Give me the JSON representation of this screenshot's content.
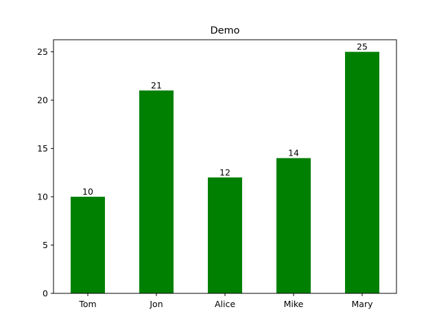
{
  "chart_data": {
    "type": "bar",
    "title": "Demo",
    "xlabel": "",
    "ylabel": "",
    "categories": [
      "Tom",
      "Jon",
      "Alice",
      "Mike",
      "Mary"
    ],
    "values": [
      10,
      21,
      12,
      14,
      25
    ],
    "data_labels": [
      "10",
      "21",
      "12",
      "14",
      "25"
    ],
    "ylim": [
      0,
      26.25
    ],
    "yticks": [
      0,
      5,
      10,
      15,
      20,
      25
    ],
    "ytick_labels": [
      "0",
      "5",
      "10",
      "15",
      "20",
      "25"
    ],
    "bar_color": "#008000",
    "grid": false,
    "legend": "none"
  }
}
